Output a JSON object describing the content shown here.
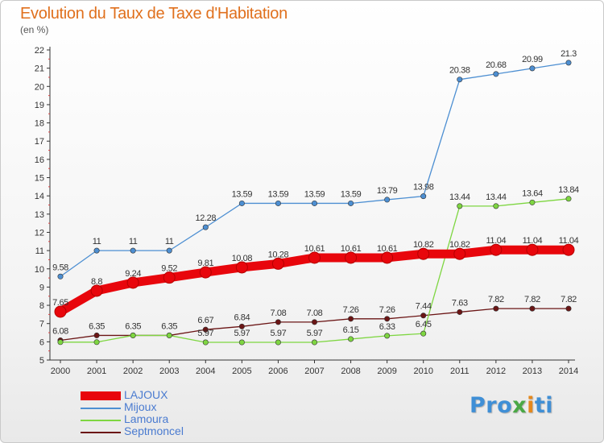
{
  "header": {
    "title": "Evolution du Taux de Taxe d'Habitation",
    "subtitle": "(en %)"
  },
  "logo": {
    "text": "Proxiti",
    "parts": [
      "Pro",
      "x",
      "i",
      "ti"
    ]
  },
  "chart_data": {
    "type": "line",
    "title": "Evolution du Taux de Taxe d'Habitation",
    "subtitle": "(en %)",
    "xlabel": "",
    "ylabel": "",
    "categories": [
      "2000",
      "2001",
      "2002",
      "2003",
      "2004",
      "2005",
      "2006",
      "2007",
      "2008",
      "2009",
      "2010",
      "2011",
      "2012",
      "2013",
      "2014"
    ],
    "ylim": [
      5,
      22
    ],
    "yticks": [
      5,
      6,
      7,
      8,
      9,
      10,
      11,
      12,
      13,
      14,
      15,
      16,
      17,
      18,
      19,
      20,
      21,
      22
    ],
    "grid": false,
    "legend_position": "bottom-left",
    "series": [
      {
        "name": "LAJOUX",
        "color": "#e8060c",
        "values": [
          7.65,
          8.8,
          9.24,
          9.52,
          9.81,
          10.08,
          10.28,
          10.61,
          10.61,
          10.61,
          10.82,
          10.82,
          11.04,
          11.04,
          11.04
        ],
        "labels": [
          "7.65",
          "8.8",
          "9.24",
          "9.52",
          "9.81",
          "10.08",
          "10.28",
          "10.61",
          "10.61",
          "10.61",
          "10.82",
          "10.82",
          "11.04",
          "11.04",
          "11.04"
        ]
      },
      {
        "name": "Mijoux",
        "color": "#4d8fd2",
        "values": [
          9.58,
          11,
          11,
          11,
          12.28,
          13.59,
          13.59,
          13.59,
          13.59,
          13.79,
          13.98,
          20.38,
          20.68,
          20.99,
          21.3
        ],
        "labels": [
          "9.58",
          "11",
          "11",
          "11",
          "12.28",
          "13.59",
          "13.59",
          "13.59",
          "13.59",
          "13.79",
          "13.98",
          "20.38",
          "20.68",
          "20.99",
          "21.3"
        ]
      },
      {
        "name": "Lamoura",
        "color": "#7ed641",
        "values": [
          5.98,
          5.98,
          6.35,
          6.35,
          5.97,
          5.97,
          5.97,
          5.97,
          6.15,
          6.33,
          6.45,
          13.44,
          13.44,
          13.64,
          13.84
        ],
        "labels": [
          "",
          "",
          "",
          "",
          "5.97",
          "5.97",
          "5.97",
          "5.97",
          "6.15",
          "6.33",
          "6.45",
          "13.44",
          "13.44",
          "13.64",
          "13.84"
        ]
      },
      {
        "name": "Septmoncel",
        "color": "#6b1515",
        "values": [
          6.08,
          6.35,
          6.35,
          6.35,
          6.67,
          6.84,
          7.08,
          7.08,
          7.26,
          7.26,
          7.44,
          7.63,
          7.82,
          7.82,
          7.82
        ],
        "labels": [
          "6.08",
          "6.35",
          "6.35",
          "6.35",
          "6.67",
          "6.84",
          "7.08",
          "7.08",
          "7.26",
          "7.26",
          "7.44",
          "7.63",
          "7.82",
          "7.82",
          "7.82"
        ]
      }
    ]
  }
}
